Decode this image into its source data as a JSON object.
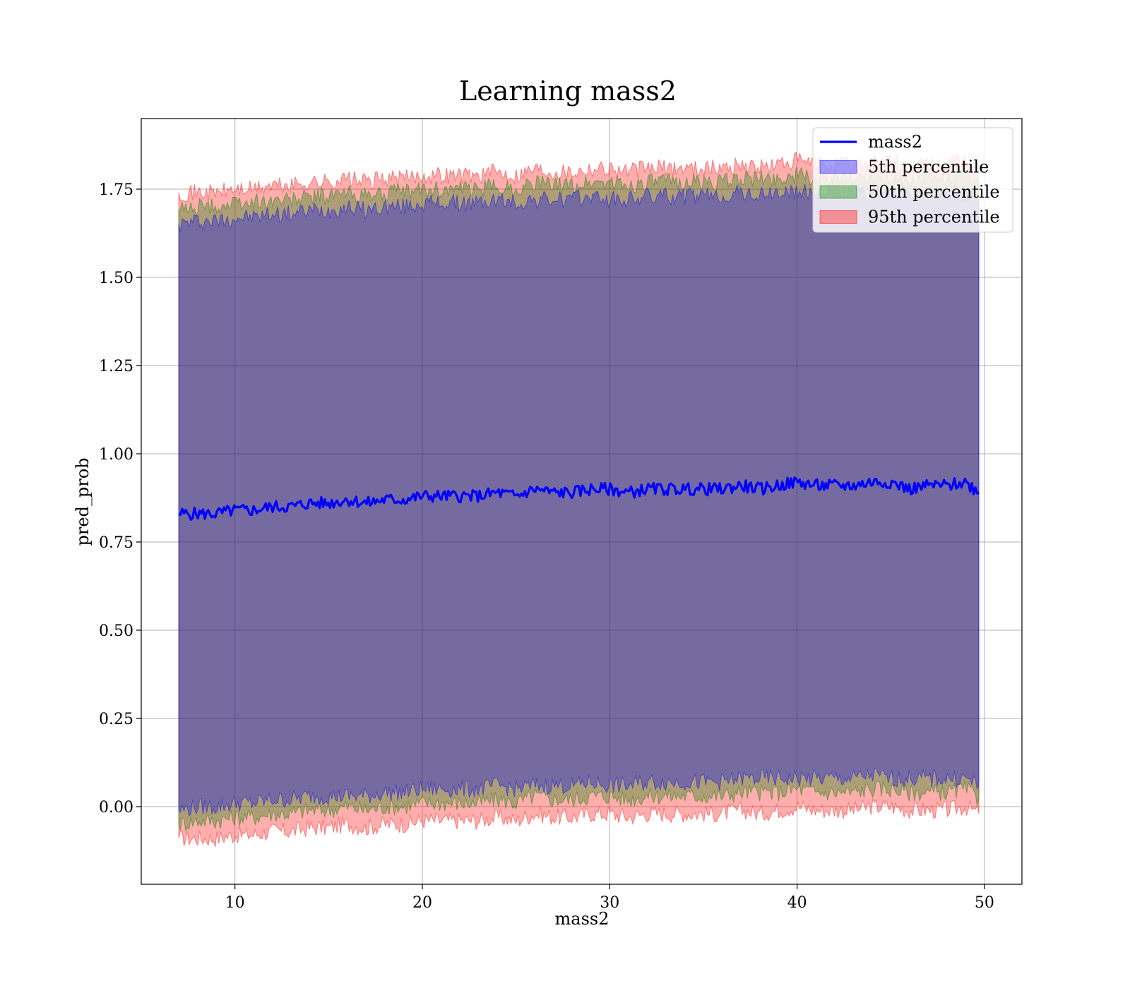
{
  "chart_data": {
    "type": "area",
    "title": "Learning mass2",
    "xlabel": "mass2",
    "ylabel": "pred_prob",
    "xlim": [
      5,
      52
    ],
    "ylim": [
      -0.22,
      1.95
    ],
    "x_ticks": [
      10,
      20,
      30,
      40,
      50
    ],
    "y_ticks": [
      0.0,
      0.25,
      0.5,
      0.75,
      1.0,
      1.25,
      1.5,
      1.75
    ],
    "x_tick_labels": [
      "10",
      "20",
      "30",
      "40",
      "50"
    ],
    "y_tick_labels": [
      "0.00",
      "0.25",
      "0.50",
      "0.75",
      "1.00",
      "1.25",
      "1.50",
      "1.75"
    ],
    "grid": true,
    "legend_position": "top-right",
    "legend": [
      {
        "label": "mass2",
        "kind": "line",
        "color": "#0000ff"
      },
      {
        "label": "5th percentile",
        "kind": "band",
        "color": "#0000ff"
      },
      {
        "label": "50th percentile",
        "kind": "band",
        "color": "#008000"
      },
      {
        "label": "95th percentile",
        "kind": "band",
        "color": "#ff0000"
      }
    ],
    "x": [
      7,
      8,
      9,
      10,
      11,
      12,
      13,
      14,
      15,
      16,
      17,
      18,
      19,
      20,
      21,
      22,
      23,
      24,
      25,
      26,
      27,
      28,
      29,
      30,
      31,
      32,
      33,
      34,
      35,
      36,
      37,
      38,
      39,
      40,
      41,
      42,
      43,
      44,
      45,
      46,
      47,
      48,
      49,
      49.7
    ],
    "series": [
      {
        "name": "mass2",
        "kind": "line",
        "color": "#0000ff",
        "values": [
          0.83,
          0.83,
          0.83,
          0.84,
          0.84,
          0.85,
          0.85,
          0.86,
          0.86,
          0.87,
          0.86,
          0.87,
          0.87,
          0.88,
          0.88,
          0.88,
          0.88,
          0.89,
          0.88,
          0.9,
          0.89,
          0.89,
          0.9,
          0.9,
          0.89,
          0.9,
          0.9,
          0.9,
          0.9,
          0.9,
          0.91,
          0.9,
          0.91,
          0.92,
          0.91,
          0.91,
          0.91,
          0.92,
          0.92,
          0.9,
          0.91,
          0.91,
          0.92,
          0.89
        ]
      },
      {
        "name": "5th percentile",
        "kind": "band",
        "color": "#0000ff",
        "lower": [
          -0.01,
          0.0,
          0.0,
          0.01,
          0.01,
          0.02,
          0.02,
          0.03,
          0.03,
          0.03,
          0.03,
          0.04,
          0.04,
          0.05,
          0.05,
          0.05,
          0.05,
          0.06,
          0.05,
          0.06,
          0.06,
          0.06,
          0.07,
          0.06,
          0.06,
          0.07,
          0.07,
          0.07,
          0.07,
          0.07,
          0.08,
          0.08,
          0.08,
          0.08,
          0.08,
          0.08,
          0.08,
          0.09,
          0.08,
          0.08,
          0.08,
          0.08,
          0.08,
          0.06
        ],
        "upper": [
          1.65,
          1.66,
          1.66,
          1.67,
          1.67,
          1.68,
          1.68,
          1.69,
          1.69,
          1.7,
          1.69,
          1.7,
          1.7,
          1.71,
          1.71,
          1.71,
          1.71,
          1.72,
          1.71,
          1.72,
          1.72,
          1.72,
          1.73,
          1.72,
          1.72,
          1.73,
          1.73,
          1.73,
          1.73,
          1.73,
          1.74,
          1.73,
          1.74,
          1.74,
          1.74,
          1.74,
          1.74,
          1.74,
          1.74,
          1.73,
          1.74,
          1.74,
          1.74,
          1.72
        ]
      },
      {
        "name": "50th percentile",
        "kind": "band",
        "color": "#008000",
        "lower": [
          -0.05,
          -0.04,
          -0.04,
          -0.03,
          -0.03,
          -0.02,
          -0.02,
          -0.01,
          -0.01,
          0.0,
          -0.01,
          0.0,
          0.0,
          0.01,
          0.01,
          0.01,
          0.01,
          0.02,
          0.01,
          0.03,
          0.02,
          0.02,
          0.03,
          0.03,
          0.02,
          0.03,
          0.03,
          0.03,
          0.03,
          0.03,
          0.04,
          0.04,
          0.04,
          0.05,
          0.04,
          0.04,
          0.04,
          0.05,
          0.05,
          0.04,
          0.04,
          0.04,
          0.05,
          0.02
        ],
        "upper": [
          1.69,
          1.7,
          1.7,
          1.71,
          1.71,
          1.72,
          1.72,
          1.73,
          1.73,
          1.74,
          1.73,
          1.74,
          1.74,
          1.75,
          1.75,
          1.75,
          1.75,
          1.76,
          1.75,
          1.77,
          1.76,
          1.76,
          1.77,
          1.77,
          1.76,
          1.77,
          1.77,
          1.77,
          1.77,
          1.77,
          1.78,
          1.78,
          1.78,
          1.79,
          1.78,
          1.78,
          1.78,
          1.79,
          1.79,
          1.77,
          1.78,
          1.78,
          1.79,
          1.76
        ]
      },
      {
        "name": "95th percentile",
        "kind": "band",
        "color": "#ff0000",
        "lower": [
          -0.09,
          -0.09,
          -0.09,
          -0.08,
          -0.08,
          -0.07,
          -0.07,
          -0.06,
          -0.06,
          -0.05,
          -0.06,
          -0.05,
          -0.05,
          -0.04,
          -0.04,
          -0.04,
          -0.04,
          -0.03,
          -0.04,
          -0.02,
          -0.03,
          -0.03,
          -0.02,
          -0.02,
          -0.03,
          -0.02,
          -0.02,
          -0.02,
          -0.02,
          -0.02,
          -0.01,
          -0.02,
          -0.01,
          0.0,
          -0.01,
          -0.01,
          -0.01,
          0.0,
          0.0,
          -0.01,
          -0.01,
          -0.01,
          0.0,
          -0.02
        ],
        "upper": [
          1.74,
          1.74,
          1.74,
          1.75,
          1.75,
          1.76,
          1.76,
          1.77,
          1.77,
          1.78,
          1.77,
          1.78,
          1.78,
          1.79,
          1.79,
          1.79,
          1.79,
          1.8,
          1.79,
          1.81,
          1.8,
          1.8,
          1.81,
          1.81,
          1.8,
          1.81,
          1.81,
          1.81,
          1.81,
          1.81,
          1.82,
          1.81,
          1.82,
          1.83,
          1.82,
          1.82,
          1.82,
          1.83,
          1.83,
          1.81,
          1.82,
          1.82,
          1.83,
          1.8
        ]
      }
    ]
  }
}
